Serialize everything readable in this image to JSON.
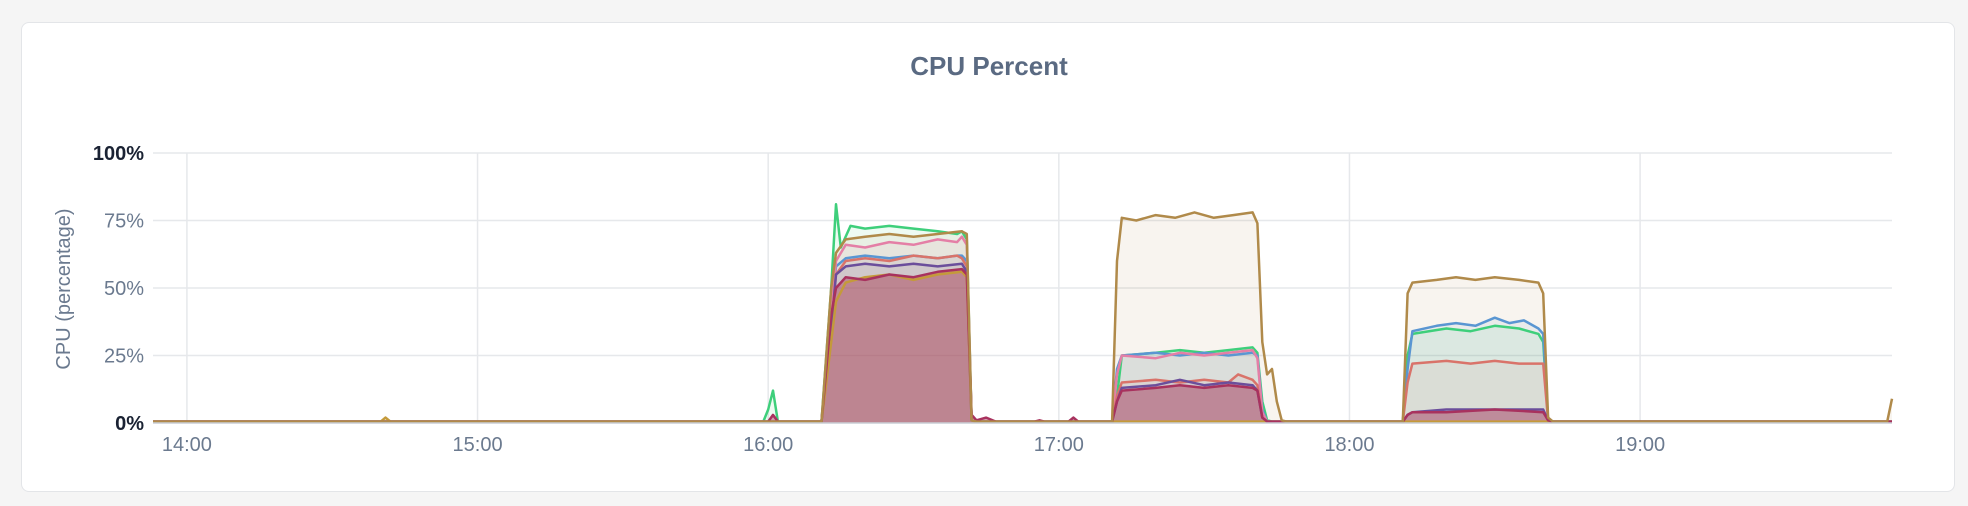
{
  "chart_data": {
    "type": "area",
    "title": "CPU Percent",
    "xlabel": "",
    "ylabel": "CPU (percentage)",
    "x_domain": [
      "13:53",
      "19:52"
    ],
    "ylim": [
      0,
      100
    ],
    "y_ticks": [
      {
        "value": 0,
        "label": "0%"
      },
      {
        "value": 25,
        "label": "25%"
      },
      {
        "value": 50,
        "label": "50%"
      },
      {
        "value": 75,
        "label": "75%"
      },
      {
        "value": 100,
        "label": "100%"
      }
    ],
    "x_ticks": [
      {
        "value": "14:00",
        "label": "14:00"
      },
      {
        "value": "15:00",
        "label": "15:00"
      },
      {
        "value": "16:00",
        "label": "16:00"
      },
      {
        "value": "17:00",
        "label": "17:00"
      },
      {
        "value": "18:00",
        "label": "18:00"
      },
      {
        "value": "19:00",
        "label": "19:00"
      }
    ],
    "grid": true,
    "legend": "none",
    "series": [
      {
        "color": "#3ecf7b",
        "fill_opacity": 0.09,
        "points": [
          [
            "13:53",
            0.5
          ],
          [
            "15:59",
            0.5
          ],
          [
            "16:00",
            5
          ],
          [
            "16:01",
            12
          ],
          [
            "16:02",
            0.5
          ],
          [
            "16:11",
            0.5
          ],
          [
            "16:13",
            50
          ],
          [
            "16:14",
            81
          ],
          [
            "16:15",
            65
          ],
          [
            "16:17",
            73
          ],
          [
            "16:20",
            72
          ],
          [
            "16:25",
            73
          ],
          [
            "16:30",
            72
          ],
          [
            "16:35",
            71
          ],
          [
            "16:39",
            70
          ],
          [
            "16:40",
            71
          ],
          [
            "16:41",
            68
          ],
          [
            "16:42",
            1
          ],
          [
            "16:43",
            0.5
          ],
          [
            "17:11",
            0.5
          ],
          [
            "17:12",
            10
          ],
          [
            "17:13",
            25
          ],
          [
            "17:20",
            26
          ],
          [
            "17:25",
            27
          ],
          [
            "17:30",
            26
          ],
          [
            "17:35",
            27
          ],
          [
            "17:40",
            28
          ],
          [
            "17:41",
            26
          ],
          [
            "17:42",
            8
          ],
          [
            "17:43",
            1
          ],
          [
            "17:44",
            0.5
          ],
          [
            "18:11",
            0.5
          ],
          [
            "18:12",
            25
          ],
          [
            "18:13",
            33
          ],
          [
            "18:20",
            35
          ],
          [
            "18:25",
            34
          ],
          [
            "18:30",
            36
          ],
          [
            "18:35",
            35
          ],
          [
            "18:39",
            33
          ],
          [
            "18:40",
            30
          ],
          [
            "18:41",
            1
          ],
          [
            "18:42",
            0.5
          ],
          [
            "19:52",
            0.5
          ]
        ]
      },
      {
        "color": "#5a96d2",
        "fill_opacity": 0.09,
        "points": [
          [
            "13:53",
            0.5
          ],
          [
            "16:11",
            0.5
          ],
          [
            "16:13",
            40
          ],
          [
            "16:14",
            58
          ],
          [
            "16:16",
            61
          ],
          [
            "16:20",
            62
          ],
          [
            "16:25",
            61
          ],
          [
            "16:30",
            62
          ],
          [
            "16:35",
            61
          ],
          [
            "16:39",
            62
          ],
          [
            "16:40",
            62
          ],
          [
            "16:41",
            60
          ],
          [
            "16:42",
            1
          ],
          [
            "16:43",
            0.5
          ],
          [
            "17:11",
            0.5
          ],
          [
            "17:12",
            20
          ],
          [
            "17:13",
            25
          ],
          [
            "17:20",
            26
          ],
          [
            "17:25",
            25
          ],
          [
            "17:30",
            26
          ],
          [
            "17:35",
            25
          ],
          [
            "17:40",
            26
          ],
          [
            "17:41",
            25
          ],
          [
            "17:42",
            5
          ],
          [
            "17:43",
            0.5
          ],
          [
            "18:11",
            0.5
          ],
          [
            "18:12",
            20
          ],
          [
            "18:13",
            34
          ],
          [
            "18:18",
            36
          ],
          [
            "18:22",
            37
          ],
          [
            "18:26",
            36
          ],
          [
            "18:30",
            39
          ],
          [
            "18:33",
            37
          ],
          [
            "18:36",
            38
          ],
          [
            "18:39",
            35
          ],
          [
            "18:40",
            33
          ],
          [
            "18:41",
            1
          ],
          [
            "18:42",
            0.5
          ],
          [
            "19:52",
            0.5
          ]
        ]
      },
      {
        "color": "#e47fa6",
        "fill_opacity": 0.09,
        "points": [
          [
            "13:53",
            0.5
          ],
          [
            "16:11",
            0.5
          ],
          [
            "16:13",
            40
          ],
          [
            "16:14",
            60
          ],
          [
            "16:16",
            66
          ],
          [
            "16:20",
            65
          ],
          [
            "16:25",
            67
          ],
          [
            "16:30",
            66
          ],
          [
            "16:35",
            68
          ],
          [
            "16:39",
            67
          ],
          [
            "16:40",
            69
          ],
          [
            "16:41",
            66
          ],
          [
            "16:42",
            1
          ],
          [
            "16:43",
            0.5
          ],
          [
            "17:11",
            0.5
          ],
          [
            "17:12",
            18
          ],
          [
            "17:13",
            25
          ],
          [
            "17:20",
            24
          ],
          [
            "17:25",
            26
          ],
          [
            "17:30",
            25
          ],
          [
            "17:35",
            26
          ],
          [
            "17:40",
            27
          ],
          [
            "17:41",
            24
          ],
          [
            "17:42",
            4
          ],
          [
            "17:43",
            0.5
          ],
          [
            "19:52",
            0.5
          ]
        ]
      },
      {
        "color": "#d9736a",
        "fill_opacity": 0.09,
        "points": [
          [
            "13:53",
            0.5
          ],
          [
            "16:11",
            0.5
          ],
          [
            "16:13",
            35
          ],
          [
            "16:14",
            55
          ],
          [
            "16:16",
            60
          ],
          [
            "16:20",
            61
          ],
          [
            "16:25",
            60
          ],
          [
            "16:30",
            62
          ],
          [
            "16:35",
            61
          ],
          [
            "16:39",
            62
          ],
          [
            "16:40",
            61
          ],
          [
            "16:41",
            58
          ],
          [
            "16:42",
            1
          ],
          [
            "16:43",
            0.5
          ],
          [
            "17:11",
            0.5
          ],
          [
            "17:12",
            10
          ],
          [
            "17:13",
            15
          ],
          [
            "17:20",
            16
          ],
          [
            "17:25",
            15
          ],
          [
            "17:30",
            16
          ],
          [
            "17:35",
            15
          ],
          [
            "17:37",
            18
          ],
          [
            "17:40",
            16
          ],
          [
            "17:41",
            14
          ],
          [
            "17:42",
            2
          ],
          [
            "17:43",
            0.5
          ],
          [
            "18:11",
            0.5
          ],
          [
            "18:12",
            15
          ],
          [
            "18:13",
            22
          ],
          [
            "18:20",
            23
          ],
          [
            "18:25",
            22
          ],
          [
            "18:30",
            23
          ],
          [
            "18:35",
            22
          ],
          [
            "18:40",
            22
          ],
          [
            "18:41",
            1
          ],
          [
            "18:42",
            0.5
          ],
          [
            "19:52",
            0.5
          ]
        ]
      },
      {
        "color": "#6b4e9b",
        "fill_opacity": 0.09,
        "points": [
          [
            "13:53",
            0.5
          ],
          [
            "16:11",
            0.5
          ],
          [
            "16:13",
            35
          ],
          [
            "16:14",
            55
          ],
          [
            "16:16",
            58
          ],
          [
            "16:20",
            59
          ],
          [
            "16:25",
            58
          ],
          [
            "16:30",
            59
          ],
          [
            "16:35",
            58
          ],
          [
            "16:40",
            59
          ],
          [
            "16:41",
            56
          ],
          [
            "16:42",
            1
          ],
          [
            "16:43",
            0.5
          ],
          [
            "17:11",
            0.5
          ],
          [
            "17:12",
            8
          ],
          [
            "17:13",
            13
          ],
          [
            "17:20",
            14
          ],
          [
            "17:25",
            16
          ],
          [
            "17:30",
            14
          ],
          [
            "17:35",
            15
          ],
          [
            "17:40",
            14
          ],
          [
            "17:41",
            12
          ],
          [
            "17:42",
            2
          ],
          [
            "17:43",
            0.5
          ],
          [
            "18:11",
            0.5
          ],
          [
            "18:12",
            3
          ],
          [
            "18:13",
            4
          ],
          [
            "18:20",
            5
          ],
          [
            "18:30",
            5
          ],
          [
            "18:40",
            5
          ],
          [
            "18:41",
            1
          ],
          [
            "18:42",
            0.5
          ],
          [
            "19:52",
            0.5
          ]
        ]
      },
      {
        "color": "#c49a3a",
        "fill_opacity": 0.09,
        "points": [
          [
            "13:53",
            0.5
          ],
          [
            "14:40",
            0.5
          ],
          [
            "14:41",
            2
          ],
          [
            "14:42",
            0.5
          ],
          [
            "16:11",
            0.5
          ],
          [
            "16:13",
            30
          ],
          [
            "16:14",
            45
          ],
          [
            "16:16",
            52
          ],
          [
            "16:20",
            54
          ],
          [
            "16:25",
            55
          ],
          [
            "16:30",
            53
          ],
          [
            "16:35",
            55
          ],
          [
            "16:40",
            56
          ],
          [
            "16:41",
            54
          ],
          [
            "16:42",
            1
          ],
          [
            "16:43",
            0.5
          ],
          [
            "19:52",
            0.5
          ]
        ]
      },
      {
        "color": "#a8325e",
        "fill_opacity": 0.45,
        "points": [
          [
            "13:53",
            0.5
          ],
          [
            "16:00",
            0.5
          ],
          [
            "16:01",
            3
          ],
          [
            "16:02",
            0.5
          ],
          [
            "16:11",
            0.5
          ],
          [
            "16:13",
            40
          ],
          [
            "16:14",
            50
          ],
          [
            "16:16",
            54
          ],
          [
            "16:20",
            53
          ],
          [
            "16:25",
            55
          ],
          [
            "16:30",
            54
          ],
          [
            "16:35",
            56
          ],
          [
            "16:40",
            57
          ],
          [
            "16:41",
            55
          ],
          [
            "16:42",
            3
          ],
          [
            "16:43",
            1
          ],
          [
            "16:45",
            2
          ],
          [
            "16:47",
            0.5
          ],
          [
            "16:55",
            0.5
          ],
          [
            "16:56",
            1
          ],
          [
            "16:57",
            0.5
          ],
          [
            "17:02",
            0.5
          ],
          [
            "17:03",
            2
          ],
          [
            "17:04",
            0.5
          ],
          [
            "17:11",
            0.5
          ],
          [
            "17:12",
            8
          ],
          [
            "17:13",
            12
          ],
          [
            "17:20",
            13
          ],
          [
            "17:25",
            14
          ],
          [
            "17:30",
            13
          ],
          [
            "17:35",
            14
          ],
          [
            "17:40",
            13
          ],
          [
            "17:41",
            12
          ],
          [
            "17:42",
            2
          ],
          [
            "17:43",
            0.5
          ],
          [
            "18:11",
            0.5
          ],
          [
            "18:12",
            3
          ],
          [
            "18:13",
            4
          ],
          [
            "18:20",
            4
          ],
          [
            "18:30",
            5
          ],
          [
            "18:40",
            4
          ],
          [
            "18:41",
            1
          ],
          [
            "18:42",
            0.5
          ],
          [
            "19:52",
            0.5
          ]
        ]
      },
      {
        "color": "#b08a4a",
        "fill_opacity": 0.09,
        "points": [
          [
            "13:53",
            0.5
          ],
          [
            "16:11",
            0.5
          ],
          [
            "16:13",
            50
          ],
          [
            "16:14",
            63
          ],
          [
            "16:16",
            68
          ],
          [
            "16:20",
            69
          ],
          [
            "16:25",
            70
          ],
          [
            "16:30",
            69
          ],
          [
            "16:35",
            70
          ],
          [
            "16:40",
            71
          ],
          [
            "16:41",
            70
          ],
          [
            "16:42",
            1
          ],
          [
            "16:43",
            0.5
          ],
          [
            "17:11",
            0.5
          ],
          [
            "17:12",
            60
          ],
          [
            "17:13",
            76
          ],
          [
            "17:16",
            75
          ],
          [
            "17:20",
            77
          ],
          [
            "17:24",
            76
          ],
          [
            "17:28",
            78
          ],
          [
            "17:32",
            76
          ],
          [
            "17:36",
            77
          ],
          [
            "17:40",
            78
          ],
          [
            "17:41",
            74
          ],
          [
            "17:42",
            30
          ],
          [
            "17:43",
            18
          ],
          [
            "17:44",
            20
          ],
          [
            "17:45",
            8
          ],
          [
            "17:46",
            1
          ],
          [
            "17:47",
            0.5
          ],
          [
            "18:11",
            0.5
          ],
          [
            "18:12",
            48
          ],
          [
            "18:13",
            52
          ],
          [
            "18:18",
            53
          ],
          [
            "18:22",
            54
          ],
          [
            "18:26",
            53
          ],
          [
            "18:30",
            54
          ],
          [
            "18:35",
            53
          ],
          [
            "18:39",
            52
          ],
          [
            "18:40",
            48
          ],
          [
            "18:41",
            2
          ],
          [
            "18:42",
            0.5
          ],
          [
            "19:51",
            0.5
          ],
          [
            "19:52",
            9
          ]
        ]
      }
    ]
  }
}
